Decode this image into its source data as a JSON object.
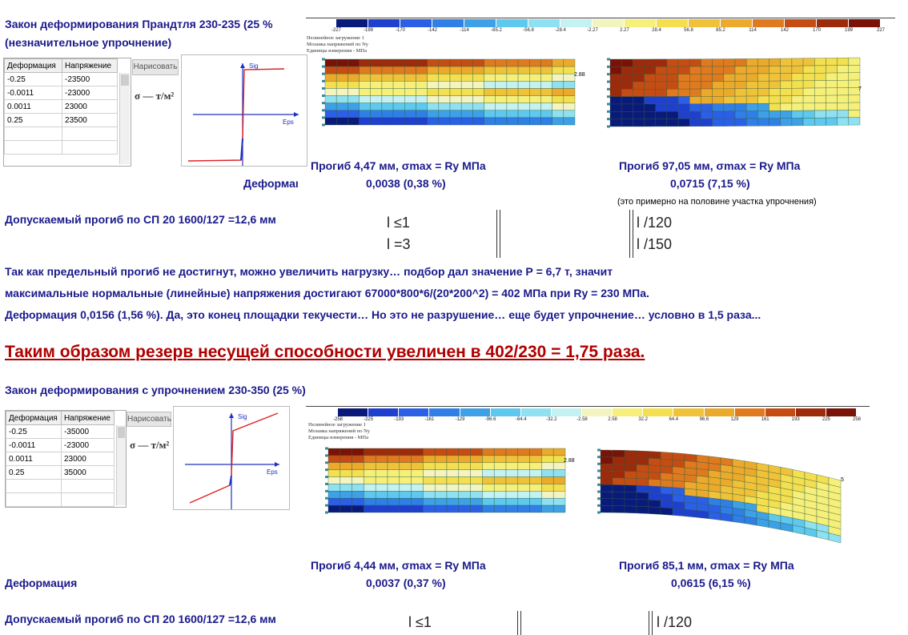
{
  "section1": {
    "title_line1": "Закон деформирования Прандтля 230-235 (25 %",
    "title_line2": "(незначительное упрочнение)",
    "table": {
      "headers": [
        "Деформация",
        "Напряжение"
      ],
      "rows": [
        [
          "-0.25",
          "-23500"
        ],
        [
          "-0.0011",
          "-23000"
        ],
        [
          "0.0011",
          "23000"
        ],
        [
          "0.25",
          "23500"
        ]
      ]
    },
    "draw_button": "Нарисовать",
    "formula": "σ — т/м²",
    "graph_y_label": "Sig",
    "graph_x_label": "Eps",
    "legend_ticks": [
      "-227",
      "-199",
      "-170",
      "-142",
      "-114",
      "-85.2",
      "-56.8",
      "-28.4",
      "-2.27",
      "2.27",
      "28.4",
      "56.8",
      "85.2",
      "114",
      "142",
      "170",
      "199",
      "227"
    ],
    "legend_colors": [
      "#0a1a7a",
      "#1f3fcf",
      "#2b5fe6",
      "#2f7fe6",
      "#3ea0e6",
      "#5ec8ee",
      "#8fe0f0",
      "#c4f2f2",
      "#f4f4c0",
      "#f6f07a",
      "#f3df4f",
      "#f0c23a",
      "#ecaa2c",
      "#e07a1f",
      "#c54d14",
      "#9e2a0c",
      "#7a1208"
    ],
    "model_header": [
      "Нелинейное загружение 1",
      "Мозаика напряжений по Ny",
      "Единицы измерения - МПа"
    ],
    "left_model_label": "2.88",
    "right_model_label": "7",
    "left_caption": "Прогиб  4,47 мм, σmax = Ry МПа",
    "right_caption": "Прогиб  97,05 мм, σmax = Ry МПа",
    "deform_label": "Деформаı",
    "left_deform": "0,0038 (0,38 %)",
    "right_deform": "0,0715 (7,15 %)",
    "right_note": "(это примерно на половине участка упрочнения)",
    "allowed": "Допускаемый прогиб по СП 20   1600/127 =12,6 мм",
    "left_formula_1": "l ≤1",
    "left_formula_2": "l =3",
    "right_formula_1": "l /120",
    "right_formula_2": "l /150"
  },
  "paragraph": {
    "line1": "Так как предельный прогиб не достигнут, можно увеличить нагрузку… подбор дал значение Р = 6,7 т, значит",
    "line2": "максимальные нормальные (линейные) напряжения достигают 67000*800*6/(20*200^2) = 402 МПа при Ry = 230 МПа.",
    "line3": "Деформация  0,0156 (1,56 %). Да, это конец площадки текучести… Но это не разрушение… еще будет упрочнение… условно в 1,5 раза..."
  },
  "headline": "Таким образом резерв несущей способности увеличен в 402/230 = 1,75 раза.",
  "section2": {
    "title": "Закон деформирования с упрочнением 230-350 (25 %)",
    "table": {
      "headers": [
        "Деформация",
        "Напряжение"
      ],
      "rows": [
        [
          "-0.25",
          "-35000"
        ],
        [
          "-0.0011",
          "-23000"
        ],
        [
          "0.0011",
          "23000"
        ],
        [
          "0.25",
          "35000"
        ]
      ]
    },
    "draw_button": "Нарисовать",
    "formula": "σ — т/м²",
    "graph_y_label": "Sig",
    "graph_x_label": "Eps",
    "legend_ticks": [
      "-258",
      "-225",
      "-193",
      "-161",
      "-129",
      "-96.6",
      "-64.4",
      "-32.2",
      "-2.58",
      "2.58",
      "32.2",
      "64.4",
      "96.6",
      "129",
      "161",
      "193",
      "225",
      "258"
    ],
    "model_header": [
      "Нелинейное загружение 1",
      "Мозаика напряжений по Ny",
      "Единицы измерения - МПа"
    ],
    "left_model_label": "2.88",
    "right_model_label": "5",
    "left_caption": "Прогиб  4,44 мм, σmax = Ry МПа",
    "right_caption": "Прогиб  85,1 мм, σmax = Ry МПа",
    "deform_label": "Деформация",
    "left_deform": "0,0037 (0,37 %)",
    "right_deform": "0,0615 (6,15 %)",
    "allowed": "Допускаемый прогиб по СП 20   1600/127 =12,6 мм",
    "left_formula_1": "l ≤1",
    "right_formula_1": "l /120"
  }
}
